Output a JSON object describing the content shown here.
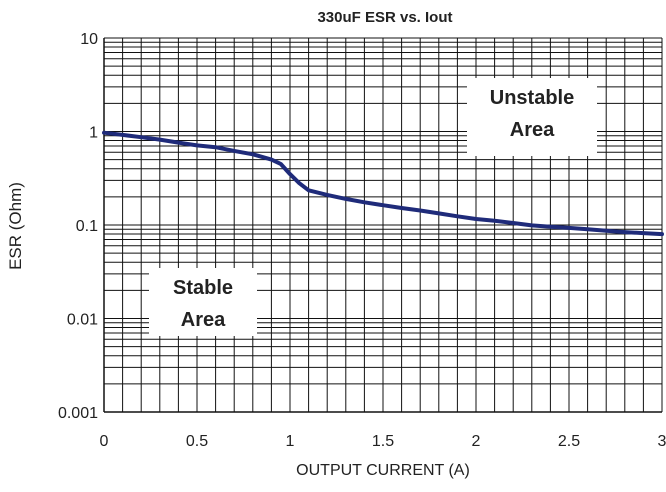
{
  "chart_data": {
    "type": "line",
    "title": "330uF ESR vs. Iout",
    "xlabel": "OUTPUT CURRENT (A)",
    "ylabel": "ESR (Ohm)",
    "xlim": [
      0,
      3
    ],
    "ylim": [
      0.001,
      10
    ],
    "yscale": "log",
    "xticks": [
      "0",
      "0.5",
      "1",
      "1.5",
      "2",
      "2.5",
      "3"
    ],
    "yticks": [
      "0.001",
      "0.01",
      "0.1",
      "1",
      "10"
    ],
    "grid": true,
    "annotations": [
      {
        "lines": [
          "Unstable",
          "Area"
        ]
      },
      {
        "lines": [
          "Stable",
          "Area"
        ]
      }
    ],
    "series": [
      {
        "color": "#1f2b7a",
        "x": [
          0,
          0.1,
          0.2,
          0.3,
          0.4,
          0.5,
          0.6,
          0.7,
          0.8,
          0.9,
          0.95,
          1.0,
          1.05,
          1.1,
          1.2,
          1.3,
          1.4,
          1.5,
          1.6,
          1.7,
          1.8,
          1.9,
          2.0,
          2.1,
          2.2,
          2.3,
          2.4,
          2.5,
          2.6,
          2.7,
          2.8,
          2.9,
          3.0
        ],
        "y": [
          0.97,
          0.92,
          0.87,
          0.82,
          0.76,
          0.71,
          0.68,
          0.62,
          0.57,
          0.5,
          0.45,
          0.35,
          0.28,
          0.235,
          0.21,
          0.19,
          0.175,
          0.163,
          0.152,
          0.143,
          0.133,
          0.124,
          0.116,
          0.111,
          0.105,
          0.099,
          0.096,
          0.093,
          0.09,
          0.087,
          0.084,
          0.082,
          0.08
        ]
      }
    ]
  }
}
